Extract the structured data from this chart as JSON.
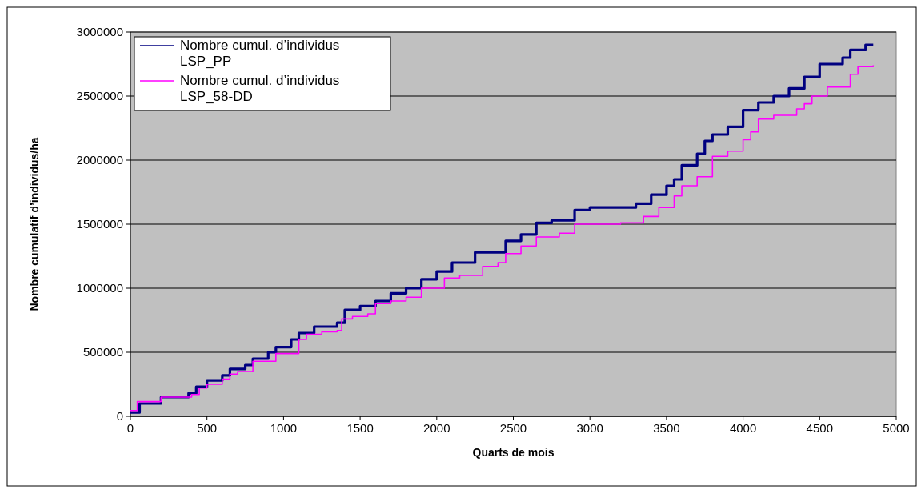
{
  "chart_data": {
    "type": "step",
    "xlabel": "Quarts de mois",
    "ylabel": "Nombre cumulatif d’individus/ha",
    "xlim": [
      0,
      5000
    ],
    "ylim": [
      0,
      3000000
    ],
    "xticks": [
      0,
      500,
      1000,
      1500,
      2000,
      2500,
      3000,
      3500,
      4000,
      4500,
      5000
    ],
    "yticks": [
      0,
      500000,
      1000000,
      1500000,
      2000000,
      2500000,
      3000000
    ],
    "grid": "y",
    "legend": "top left",
    "series": [
      {
        "name": "Nombre cumul. d’individus LSP_PP",
        "color": "#000080",
        "x": [
          0,
          60,
          200,
          380,
          430,
          500,
          600,
          650,
          750,
          800,
          900,
          950,
          1050,
          1100,
          1200,
          1350,
          1400,
          1500,
          1600,
          1700,
          1800,
          1900,
          2000,
          2100,
          2250,
          2450,
          2550,
          2650,
          2750,
          2900,
          3000,
          3300,
          3400,
          3500,
          3550,
          3600,
          3700,
          3750,
          3800,
          3900,
          4000,
          4100,
          4200,
          4300,
          4400,
          4500,
          4650,
          4700,
          4800,
          4850
        ],
        "values": [
          30000,
          100000,
          150000,
          180000,
          230000,
          280000,
          320000,
          370000,
          400000,
          450000,
          500000,
          540000,
          600000,
          650000,
          700000,
          730000,
          830000,
          860000,
          900000,
          960000,
          1000000,
          1070000,
          1130000,
          1200000,
          1280000,
          1370000,
          1420000,
          1510000,
          1530000,
          1610000,
          1630000,
          1660000,
          1730000,
          1800000,
          1850000,
          1960000,
          2050000,
          2150000,
          2200000,
          2260000,
          2390000,
          2450000,
          2500000,
          2560000,
          2650000,
          2750000,
          2800000,
          2860000,
          2900000,
          2900000
        ]
      },
      {
        "name": "Nombre cumul. d’individus LSP_58-DD",
        "color": "#ff00ff",
        "x": [
          0,
          45,
          200,
          400,
          450,
          500,
          600,
          650,
          700,
          800,
          950,
          1100,
          1150,
          1250,
          1350,
          1380,
          1450,
          1550,
          1600,
          1700,
          1800,
          1900,
          2050,
          2150,
          2300,
          2400,
          2450,
          2550,
          2650,
          2800,
          2900,
          3200,
          3350,
          3450,
          3550,
          3600,
          3700,
          3800,
          3900,
          4000,
          4050,
          4100,
          4200,
          4350,
          4400,
          4450,
          4550,
          4700,
          4750,
          4850
        ],
        "values": [
          45000,
          115000,
          150000,
          170000,
          220000,
          250000,
          290000,
          330000,
          350000,
          430000,
          490000,
          600000,
          640000,
          660000,
          670000,
          760000,
          780000,
          800000,
          880000,
          900000,
          930000,
          1000000,
          1080000,
          1100000,
          1170000,
          1200000,
          1270000,
          1330000,
          1400000,
          1430000,
          1500000,
          1510000,
          1560000,
          1630000,
          1720000,
          1800000,
          1870000,
          2030000,
          2070000,
          2160000,
          2220000,
          2320000,
          2350000,
          2400000,
          2440000,
          2500000,
          2570000,
          2670000,
          2730000,
          2740000
        ]
      }
    ]
  }
}
